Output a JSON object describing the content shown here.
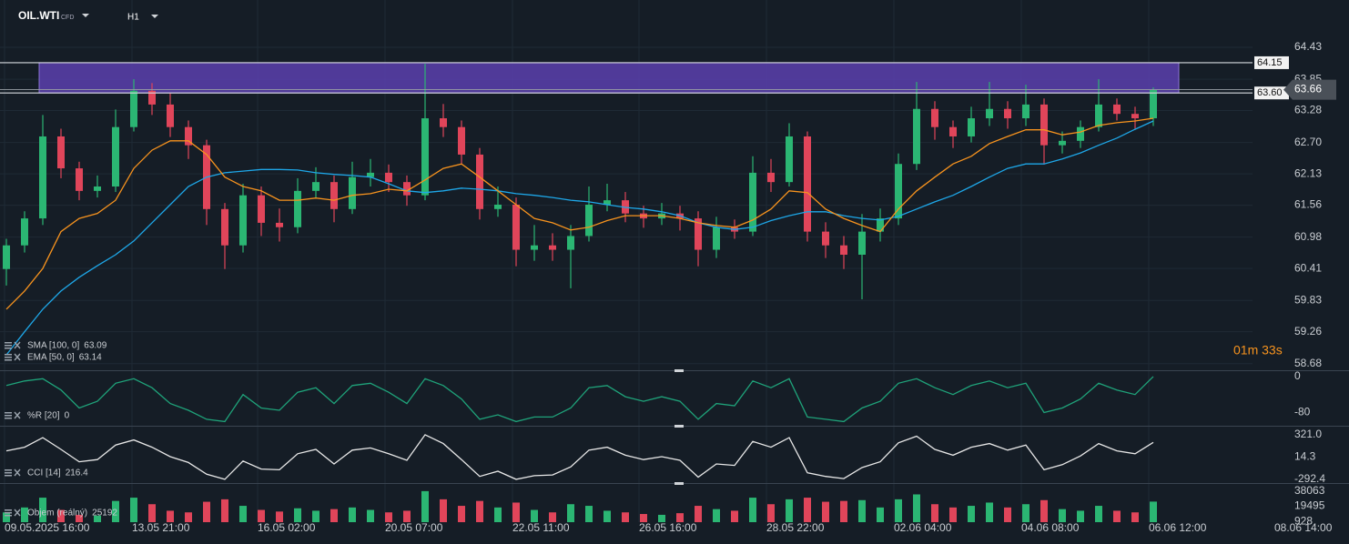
{
  "chart_data": [
    {
      "type": "candlestick",
      "symbol": "OIL.WTI",
      "instrument_type": "CFD",
      "timeframe": "H1",
      "countdown": "01m 33s",
      "up_color": "#2bb673",
      "down_color": "#e0455a",
      "grid": true,
      "xlim": [
        -0.35,
        68.45
      ],
      "xticks": [
        {
          "value": -0.1,
          "label": "09.05.2025 16:00"
        },
        {
          "value": 6.9,
          "label": "13.05 21:00"
        },
        {
          "value": 13.8,
          "label": "16.05 02:00"
        },
        {
          "value": 20.8,
          "label": "20.05 07:00"
        },
        {
          "value": 27.8,
          "label": "22.05 11:00"
        },
        {
          "value": 34.75,
          "label": "26.05 16:00"
        },
        {
          "value": 41.75,
          "label": "28.05 22:00"
        },
        {
          "value": 48.75,
          "label": "02.06 04:00"
        },
        {
          "value": 55.75,
          "label": "04.06 08:00"
        },
        {
          "value": 62.75,
          "label": "06.06 12:00"
        },
        {
          "value": 69.65,
          "label": "08.06 14:00"
        }
      ],
      "ylim": [
        58.56,
        65.29
      ],
      "yticks": [
        64.43,
        63.85,
        63.28,
        {
          "value": 62.7,
          "label": "62.70"
        },
        62.13,
        61.56,
        60.98,
        60.41,
        59.83,
        59.26,
        58.68
      ],
      "levels": [
        64.15,
        {
          "value": 63.6,
          "label": "63.60"
        }
      ],
      "zone": {
        "x": [
          1.8,
          64.4
        ],
        "color": "#5b3fae"
      },
      "open": [
        60.4,
        60.83,
        61.32,
        62.81,
        62.23,
        61.82,
        61.9,
        62.98,
        63.64,
        63.39,
        62.98,
        62.65,
        61.49,
        60.83,
        61.74,
        61.24,
        61.16,
        61.82,
        61.98,
        61.49,
        62.07,
        62.15,
        61.98,
        61.74,
        63.14,
        62.98,
        62.48,
        61.49,
        61.57,
        60.75,
        60.83,
        60.75,
        61.0,
        61.57,
        61.65,
        61.41,
        61.32,
        61.41,
        61.32,
        60.75,
        61.16,
        61.08,
        62.15,
        61.98,
        62.81,
        61.08,
        60.83,
        60.66,
        61.08,
        61.32,
        62.31,
        63.31,
        62.98,
        62.81,
        63.14,
        63.31,
        63.14,
        63.39,
        62.65,
        62.73,
        62.98,
        63.39,
        63.22,
        63.14
      ],
      "high": [
        60.95,
        61.45,
        63.2,
        62.95,
        62.35,
        62.1,
        63.3,
        63.85,
        63.78,
        63.6,
        63.1,
        62.75,
        61.6,
        61.95,
        61.9,
        61.5,
        62.05,
        62.25,
        62.1,
        62.35,
        62.4,
        62.3,
        62.1,
        64.13,
        63.4,
        63.1,
        62.6,
        61.9,
        61.7,
        61.2,
        61.05,
        61.2,
        61.9,
        61.95,
        61.8,
        61.55,
        61.6,
        61.55,
        61.45,
        61.35,
        61.3,
        62.45,
        62.4,
        63.05,
        62.9,
        61.25,
        61.0,
        61.4,
        61.5,
        62.5,
        63.8,
        63.45,
        63.1,
        63.35,
        63.8,
        63.45,
        63.75,
        63.5,
        62.9,
        63.1,
        63.85,
        63.5,
        63.35,
        63.7
      ],
      "low": [
        60.1,
        60.7,
        61.2,
        62.05,
        61.65,
        61.7,
        61.8,
        62.9,
        63.2,
        62.8,
        62.4,
        61.2,
        60.4,
        60.7,
        61.0,
        60.9,
        61.05,
        61.7,
        61.25,
        61.4,
        61.9,
        61.8,
        61.55,
        61.65,
        62.8,
        62.3,
        61.3,
        61.35,
        60.45,
        60.55,
        60.55,
        60.05,
        60.9,
        61.45,
        61.25,
        61.15,
        61.2,
        61.1,
        60.45,
        60.6,
        60.95,
        61.0,
        61.8,
        61.9,
        60.9,
        60.6,
        60.4,
        59.85,
        60.9,
        61.2,
        62.2,
        62.75,
        62.6,
        62.7,
        63.0,
        62.95,
        63.0,
        62.3,
        62.5,
        62.6,
        62.9,
        63.1,
        62.95,
        63.0
      ],
      "close": [
        60.83,
        61.32,
        62.81,
        62.23,
        61.82,
        61.9,
        62.98,
        63.64,
        63.39,
        62.98,
        62.65,
        61.49,
        60.83,
        61.74,
        61.24,
        61.16,
        61.82,
        61.98,
        61.49,
        62.07,
        62.15,
        61.98,
        61.74,
        63.14,
        62.98,
        62.48,
        61.49,
        61.57,
        60.75,
        60.83,
        60.75,
        61.0,
        61.57,
        61.65,
        61.41,
        61.32,
        61.41,
        61.32,
        60.75,
        61.16,
        61.08,
        62.15,
        61.98,
        62.81,
        61.08,
        60.83,
        60.66,
        61.08,
        61.32,
        62.31,
        63.31,
        62.98,
        62.81,
        63.14,
        63.31,
        63.14,
        63.39,
        62.65,
        62.73,
        62.98,
        63.39,
        63.22,
        63.14,
        63.66
      ],
      "series": [
        {
          "name": "SMA [100, 0]",
          "color": "#1ea7e8",
          "values": [
            58.84,
            59.26,
            59.67,
            60.0,
            60.25,
            60.46,
            60.66,
            60.91,
            61.24,
            61.57,
            61.9,
            62.07,
            62.15,
            62.18,
            62.21,
            62.21,
            62.2,
            62.15,
            62.12,
            62.1,
            62.07,
            61.95,
            61.82,
            61.79,
            61.82,
            61.87,
            61.85,
            61.82,
            61.77,
            61.74,
            61.7,
            61.65,
            61.62,
            61.57,
            61.52,
            61.49,
            61.44,
            61.37,
            61.24,
            61.16,
            61.12,
            61.16,
            61.28,
            61.37,
            61.44,
            61.44,
            61.37,
            61.32,
            61.29,
            61.36,
            61.49,
            61.62,
            61.74,
            61.9,
            62.07,
            62.23,
            62.31,
            62.31,
            62.4,
            62.51,
            62.65,
            62.78,
            62.94,
            63.09
          ]
        },
        {
          "name": "EMA [50, 0]",
          "color": "#f7931e",
          "values": [
            59.67,
            60.0,
            60.41,
            61.08,
            61.32,
            61.41,
            61.65,
            62.23,
            62.56,
            62.73,
            62.73,
            62.48,
            62.07,
            61.9,
            61.82,
            61.65,
            61.65,
            61.69,
            61.65,
            61.74,
            61.77,
            61.85,
            61.82,
            62.02,
            62.23,
            62.31,
            62.07,
            61.82,
            61.57,
            61.32,
            61.24,
            61.11,
            61.16,
            61.28,
            61.37,
            61.37,
            61.37,
            61.32,
            61.24,
            61.19,
            61.16,
            61.29,
            61.49,
            61.82,
            61.79,
            61.49,
            61.32,
            61.19,
            61.08,
            61.49,
            61.82,
            62.07,
            62.31,
            62.45,
            62.68,
            62.81,
            62.93,
            62.93,
            62.84,
            62.89,
            63.01,
            63.06,
            63.09,
            63.14
          ]
        }
      ]
    },
    {
      "type": "line",
      "grid": false,
      "ylim": [
        -107.3,
        9.8
      ],
      "yticks": [
        0,
        -80
      ],
      "series": [
        {
          "name": "%R [20]",
          "color": "#1fa37a",
          "values": [
            -20,
            -10,
            -5,
            -30,
            -70,
            -55,
            -15,
            -5,
            -25,
            -60,
            -75,
            -95,
            -100,
            -40,
            -70,
            -75,
            -35,
            -25,
            -60,
            -20,
            -15,
            -35,
            -60,
            -5,
            -20,
            -50,
            -95,
            -85,
            -100,
            -90,
            -90,
            -70,
            -25,
            -20,
            -45,
            -55,
            -45,
            -55,
            -95,
            -60,
            -65,
            -10,
            -25,
            -5,
            -90,
            -95,
            -100,
            -70,
            -55,
            -15,
            -5,
            -25,
            -40,
            -20,
            -10,
            -25,
            -15,
            -80,
            -70,
            -50,
            -15,
            -30,
            -40,
            0
          ]
        }
      ]
    },
    {
      "type": "line",
      "grid": false,
      "ylim": [
        -329,
        419
      ],
      "yticks": [
        {
          "value": 321,
          "label": "321.0"
        },
        14.3,
        -292.4
      ],
      "series": [
        {
          "name": "CCI [14]",
          "color": "#e8e8e8",
          "values": [
            100,
            150,
            280,
            120,
            -50,
            -20,
            180,
            250,
            150,
            20,
            -60,
            -220,
            -290,
            -40,
            -150,
            -160,
            60,
            120,
            -80,
            110,
            140,
            60,
            -30,
            320,
            200,
            -20,
            -250,
            -180,
            -290,
            -240,
            -230,
            -120,
            110,
            150,
            40,
            -20,
            20,
            -30,
            -260,
            -80,
            -100,
            230,
            150,
            280,
            -200,
            -250,
            -280,
            -130,
            -50,
            210,
            300,
            120,
            40,
            150,
            200,
            110,
            180,
            -160,
            -90,
            30,
            200,
            100,
            60,
            216.4
          ]
        }
      ]
    },
    {
      "type": "bar",
      "grid": false,
      "ylim": [
        0,
        45676
      ],
      "yticks": [
        38063,
        19495,
        928
      ],
      "series": [
        {
          "name": "Objem (reálný)",
          "values": [
            12000,
            18000,
            30000,
            15000,
            9000,
            8000,
            26000,
            30000,
            22000,
            14000,
            12000,
            25000,
            28000,
            20000,
            15000,
            13000,
            17000,
            14000,
            16000,
            18000,
            15000,
            12000,
            14000,
            38000,
            28000,
            20000,
            26000,
            18000,
            24000,
            15000,
            12000,
            22000,
            20000,
            14000,
            12000,
            10000,
            9000,
            11000,
            20000,
            16000,
            14000,
            30000,
            22000,
            28000,
            30000,
            25000,
            26000,
            27000,
            18000,
            28000,
            34000,
            22000,
            18000,
            20000,
            24000,
            18000,
            22000,
            27000,
            16000,
            14000,
            20000,
            14000,
            12000,
            25192
          ]
        }
      ]
    }
  ]
}
